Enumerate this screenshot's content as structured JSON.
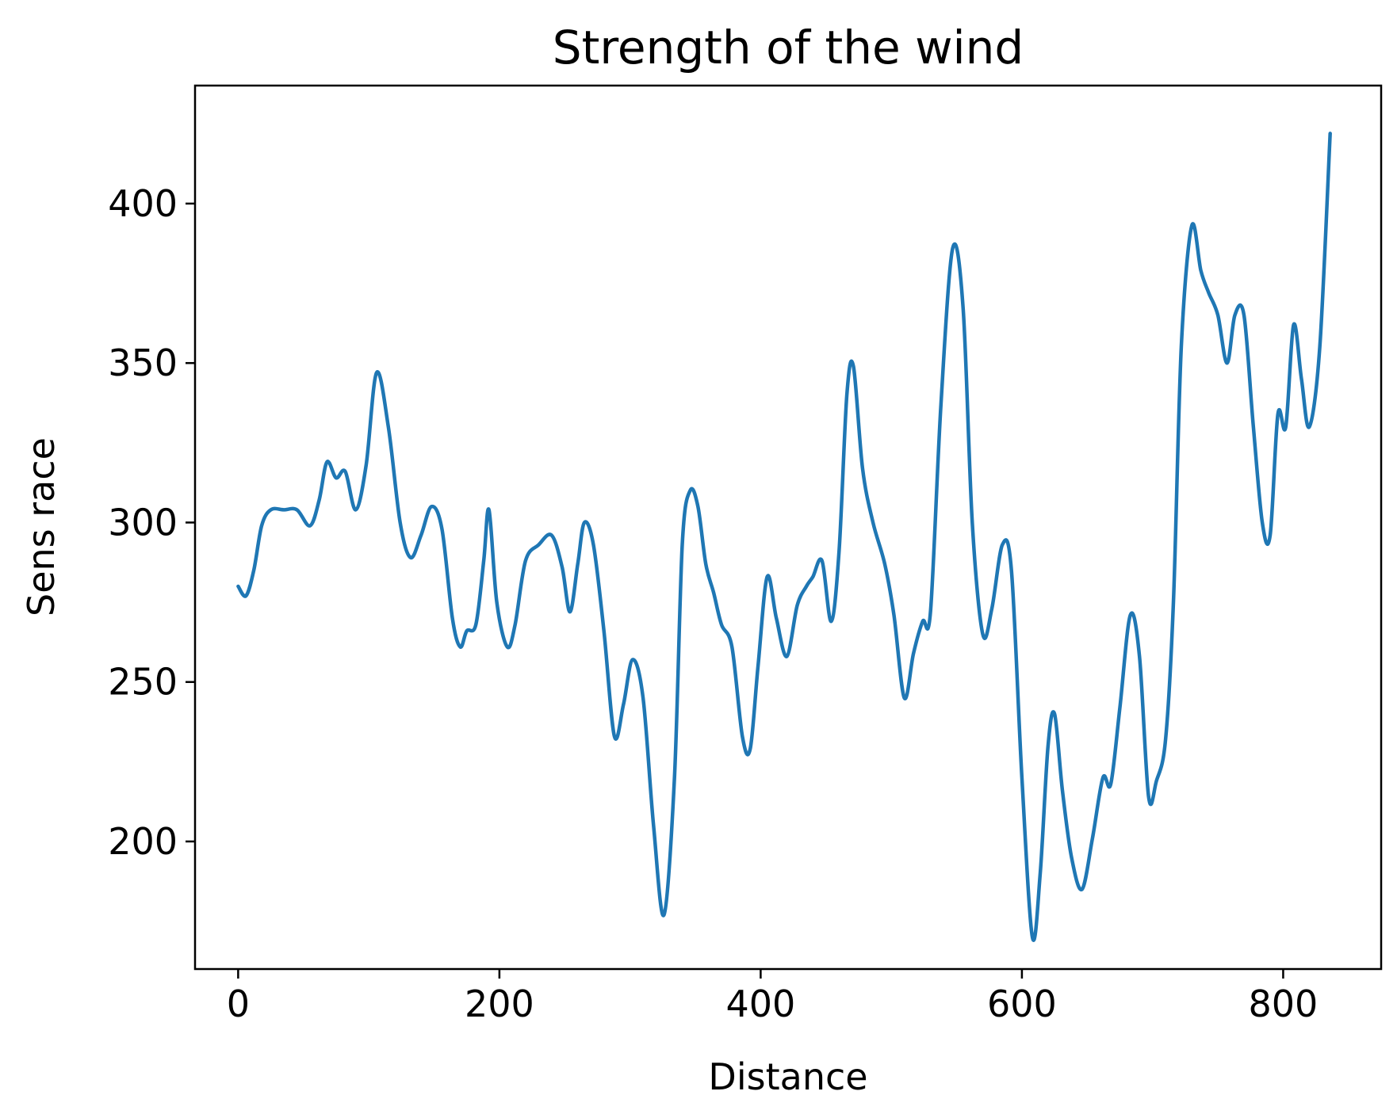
{
  "chart_data": {
    "type": "line",
    "title": "Strength of the wind",
    "xlabel": "Distance",
    "ylabel": "Sens race",
    "xlim": [
      -33,
      875
    ],
    "ylim": [
      160,
      437
    ],
    "xticks": [
      0,
      200,
      400,
      600,
      800
    ],
    "yticks": [
      200,
      250,
      300,
      350,
      400
    ],
    "grid": false,
    "legend": "none",
    "color": "#1f77b4",
    "series": [
      {
        "x": [
          0,
          6,
          12,
          18,
          25,
          35,
          45,
          55,
          62,
          68,
          75,
          82,
          90,
          98,
          106,
          115,
          124,
          132,
          140,
          148,
          156,
          164,
          170,
          175,
          182,
          188,
          192,
          198,
          206,
          212,
          220,
          230,
          240,
          248,
          254,
          260,
          265,
          272,
          280,
          288,
          295,
          302,
          310,
          318,
          326,
          334,
          340,
          346,
          352,
          358,
          364,
          370,
          378,
          386,
          392,
          398,
          405,
          412,
          420,
          428,
          435,
          440,
          447,
          454,
          460,
          466,
          471,
          478,
          486,
          495,
          502,
          510,
          517,
          524,
          530,
          538,
          547,
          555,
          562,
          570,
          577,
          585,
          592,
          600,
          608,
          614,
          620,
          625,
          631,
          638,
          646,
          654,
          662,
          668,
          675,
          683,
          690,
          697,
          703,
          710,
          716,
          722,
          730,
          737,
          743,
          750,
          757,
          763,
          770,
          777,
          784,
          790,
          796,
          802,
          808,
          814,
          820,
          828,
          836
        ],
        "y": [
          280,
          277,
          285,
          299,
          304,
          304,
          304,
          299,
          307,
          319,
          314,
          316,
          304,
          318,
          347,
          330,
          300,
          289,
          296,
          305,
          298,
          270,
          261,
          266,
          268,
          288,
          304,
          275,
          261,
          268,
          288,
          293,
          296,
          286,
          272,
          287,
          300,
          293,
          266,
          233,
          243,
          257,
          245,
          205,
          177,
          220,
          293,
          310,
          305,
          287,
          278,
          268,
          261,
          233,
          229,
          255,
          283,
          270,
          258,
          274,
          280,
          283,
          288,
          269,
          291,
          340,
          349,
          317,
          300,
          287,
          271,
          245,
          259,
          269,
          272,
          337,
          386,
          367,
          300,
          265,
          273,
          293,
          285,
          220,
          170,
          190,
          230,
          240,
          216,
          195,
          185,
          201,
          220,
          218,
          242,
          271,
          258,
          214,
          219,
          232,
          275,
          355,
          393,
          379,
          372,
          365,
          350,
          365,
          365,
          331,
          300,
          296,
          334,
          330,
          362,
          345,
          330,
          355,
          422
        ]
      }
    ]
  }
}
